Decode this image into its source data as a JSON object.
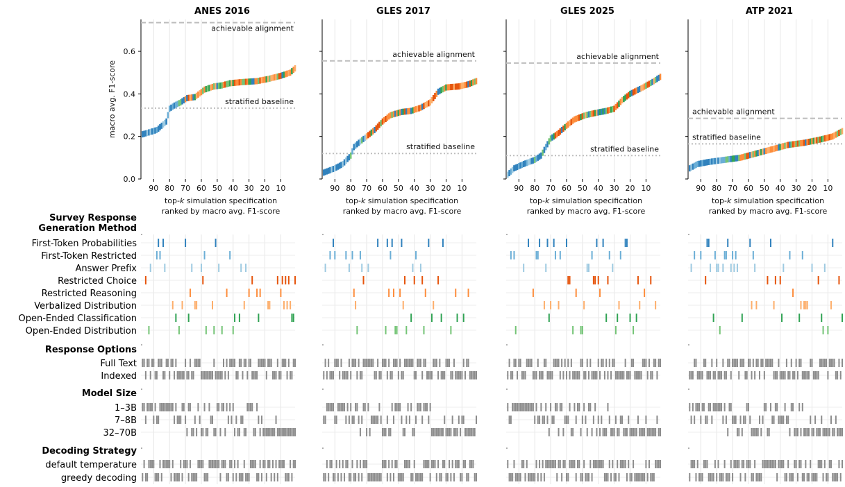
{
  "colors": {
    "first_token_prob": "#3182bd",
    "first_token_restricted": "#6baed6",
    "answer_prefix": "#9ecae1",
    "restricted_choice": "#e6550d",
    "restricted_reasoning": "#fd8d3c",
    "verbalized_distribution": "#fdae6b",
    "open_ended_classification": "#31a354",
    "open_ended_distribution": "#74c476",
    "gray_marks": "#8c8c8c",
    "reference_line": "#bdbdbd",
    "grid": "#e6e6e6"
  },
  "text": {
    "ylabel": "macro avg. F1-score",
    "xlabel_line1_pre": "top-",
    "xlabel_line1_k": "k",
    "xlabel_line1_post": " simulation specification",
    "xlabel_line2": "ranked by macro avg. F1-score",
    "achievable": "achievable alignment",
    "baseline": "stratified baseline"
  },
  "groups": [
    {
      "title_lines": [
        "Survey Response",
        "Generation Method"
      ],
      "rows": [
        "First-Token Probabilities",
        "First-Token Restricted",
        "Answer Prefix",
        "Restricted Choice",
        "Restricted Reasoning",
        "Verbalized Distribution",
        "Open-Ended Classification",
        "Open-Ended Distribution"
      ]
    },
    {
      "title_lines": [
        "Response Options"
      ],
      "rows": [
        "Full Text",
        "Indexed"
      ]
    },
    {
      "title_lines": [
        "Model Size"
      ],
      "rows": [
        "1–3B",
        "7–8B",
        "32–70B"
      ]
    },
    {
      "title_lines": [
        "Decoding Strategy"
      ],
      "rows": [
        "default temperature",
        "greedy decoding"
      ]
    }
  ],
  "chart_data": [
    {
      "type": "scatter",
      "title": "ANES 2016",
      "xlabel": "top-k simulation specification ranked by macro avg. F1-score",
      "ylabel": "macro avg. F1-score",
      "xlim": [
        98,
        1
      ],
      "xticks": [
        90,
        80,
        70,
        60,
        50,
        40,
        30,
        20,
        10
      ],
      "ylim": [
        0,
        0.75
      ],
      "yticks": [
        0.0,
        0.2,
        0.4,
        0.6
      ],
      "achievable_alignment": 0.735,
      "stratified_baseline": 0.333,
      "rank_f1_curve": [
        [
          97,
          0.21
        ],
        [
          88,
          0.23
        ],
        [
          82,
          0.27
        ],
        [
          80,
          0.33
        ],
        [
          77,
          0.345
        ],
        [
          73,
          0.36
        ],
        [
          69,
          0.38
        ],
        [
          64,
          0.385
        ],
        [
          58,
          0.42
        ],
        [
          52,
          0.435
        ],
        [
          47,
          0.44
        ],
        [
          42,
          0.45
        ],
        [
          35,
          0.455
        ],
        [
          25,
          0.46
        ],
        [
          18,
          0.47
        ],
        [
          10,
          0.485
        ],
        [
          4,
          0.5
        ],
        [
          1,
          0.52
        ]
      ],
      "grid": true
    },
    {
      "type": "scatter",
      "title": "GLES 2017",
      "xlabel": "top-k simulation specification ranked by macro avg. F1-score",
      "ylabel": "",
      "xlim": [
        98,
        1
      ],
      "xticks": [
        90,
        80,
        70,
        60,
        50,
        40,
        30,
        20,
        10
      ],
      "ylim": [
        0,
        0.75
      ],
      "yticks": [
        0.0,
        0.2,
        0.4,
        0.6
      ],
      "achievable_alignment": 0.555,
      "stratified_baseline": 0.12,
      "rank_f1_curve": [
        [
          97,
          0.03
        ],
        [
          90,
          0.05
        ],
        [
          85,
          0.07
        ],
        [
          80,
          0.11
        ],
        [
          78,
          0.15
        ],
        [
          75,
          0.17
        ],
        [
          70,
          0.2
        ],
        [
          65,
          0.23
        ],
        [
          60,
          0.27
        ],
        [
          55,
          0.3
        ],
        [
          48,
          0.315
        ],
        [
          42,
          0.32
        ],
        [
          36,
          0.335
        ],
        [
          30,
          0.36
        ],
        [
          25,
          0.41
        ],
        [
          20,
          0.43
        ],
        [
          12,
          0.435
        ],
        [
          6,
          0.445
        ],
        [
          1,
          0.46
        ]
      ],
      "grid": true
    },
    {
      "type": "scatter",
      "title": "GLES 2025",
      "xlabel": "top-k simulation specification ranked by macro avg. F1-score",
      "ylabel": "",
      "xlim": [
        98,
        1
      ],
      "xticks": [
        90,
        80,
        70,
        60,
        50,
        40,
        30,
        20,
        10
      ],
      "ylim": [
        0,
        0.75
      ],
      "yticks": [
        0.0,
        0.2,
        0.4,
        0.6
      ],
      "achievable_alignment": 0.545,
      "stratified_baseline": 0.11,
      "rank_f1_curve": [
        [
          97,
          0.02
        ],
        [
          93,
          0.05
        ],
        [
          87,
          0.07
        ],
        [
          80,
          0.09
        ],
        [
          76,
          0.11
        ],
        [
          73,
          0.15
        ],
        [
          70,
          0.19
        ],
        [
          66,
          0.21
        ],
        [
          60,
          0.25
        ],
        [
          55,
          0.28
        ],
        [
          48,
          0.3
        ],
        [
          42,
          0.31
        ],
        [
          35,
          0.32
        ],
        [
          30,
          0.33
        ],
        [
          25,
          0.37
        ],
        [
          20,
          0.4
        ],
        [
          12,
          0.43
        ],
        [
          5,
          0.46
        ],
        [
          1,
          0.48
        ]
      ],
      "grid": true
    },
    {
      "type": "scatter",
      "title": "ATP 2021",
      "xlabel": "top-k simulation specification ranked by macro avg. F1-score",
      "ylabel": "",
      "xlim": [
        98,
        1
      ],
      "xticks": [
        90,
        80,
        70,
        60,
        50,
        40,
        30,
        20,
        10
      ],
      "ylim": [
        0,
        0.75
      ],
      "yticks": [
        0.0,
        0.2,
        0.4,
        0.6
      ],
      "achievable_alignment": 0.285,
      "stratified_baseline": 0.165,
      "rank_f1_curve": [
        [
          97,
          0.05
        ],
        [
          92,
          0.07
        ],
        [
          85,
          0.08
        ],
        [
          75,
          0.09
        ],
        [
          65,
          0.1
        ],
        [
          55,
          0.12
        ],
        [
          45,
          0.14
        ],
        [
          35,
          0.16
        ],
        [
          25,
          0.17
        ],
        [
          15,
          0.185
        ],
        [
          7,
          0.2
        ],
        [
          1,
          0.225
        ]
      ],
      "grid": true
    }
  ]
}
